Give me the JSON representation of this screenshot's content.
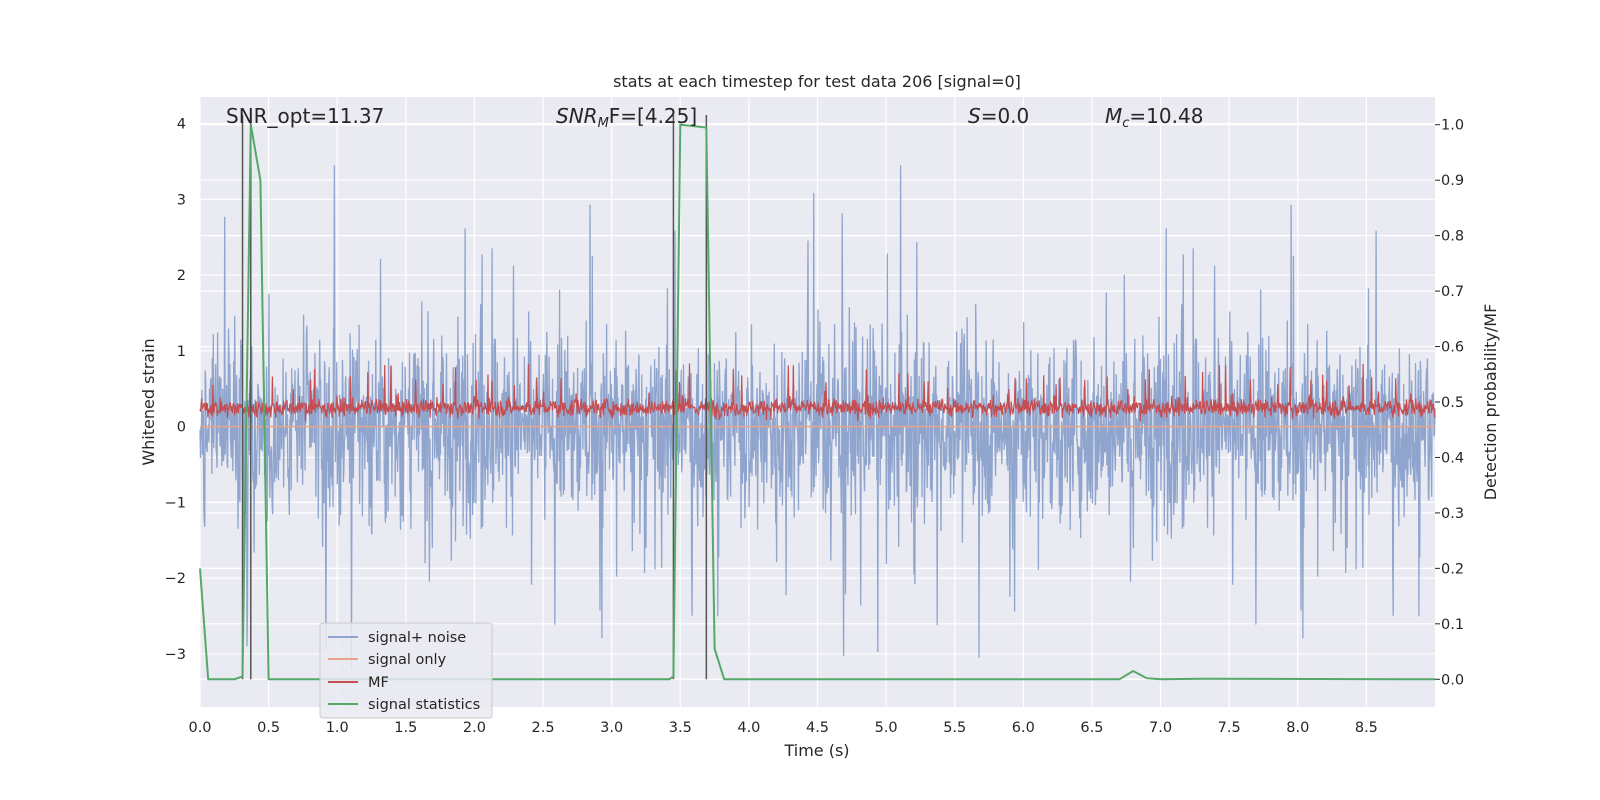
{
  "chart_data": {
    "type": "line",
    "title": "stats at each timestep for test data 206 [signal=0]",
    "xlabel": "Time (s)",
    "ylabel_left": "Whitened strain",
    "ylabel_right": "Detection probability/MF",
    "xlim": [
      0.0,
      9.0
    ],
    "ylim_left": [
      -3.7,
      4.35
    ],
    "ylim_right": [
      -0.05,
      1.05
    ],
    "x_ticks": [
      "0.0",
      "0.5",
      "1.0",
      "1.5",
      "2.0",
      "2.5",
      "3.0",
      "3.5",
      "4.0",
      "4.5",
      "5.0",
      "5.5",
      "6.0",
      "6.5",
      "7.0",
      "7.5",
      "8.0",
      "8.5"
    ],
    "y_ticks_left": [
      "−3",
      "−2",
      "−1",
      "0",
      "1",
      "2",
      "3",
      "4"
    ],
    "y_ticks_right": [
      "0.0",
      "0.1",
      "0.2",
      "0.3",
      "0.4",
      "0.5",
      "0.6",
      "0.7",
      "0.8",
      "0.9",
      "1.0"
    ],
    "grid": true,
    "legend_placement": "lower-left",
    "annotations": {
      "snr_opt": "SNR_opt=11.37",
      "snr_mf_main": "SNR",
      "snr_mf_sub": "M",
      "snr_mf_rest": "F=[4.25]",
      "s_var": "S",
      "s_rest": "=0.0",
      "mc_main": "M",
      "mc_sub": "c",
      "mc_rest": "=10.48"
    },
    "vertical_lines_x": [
      0.31,
      0.37,
      3.45,
      3.69
    ],
    "series": [
      {
        "name": "signal+ noise",
        "color": "#8fa5cd",
        "description_stats": {
          "center": 0.0,
          "amplitude": 1.2,
          "max_peak": 3.45,
          "min_peak": -3.2
        }
      },
      {
        "name": "signal only",
        "color": "#e8a58a",
        "values_constant": 0.0
      },
      {
        "name": "MF",
        "color": "#c44e52",
        "description_stats": {
          "center": 0.25,
          "low": 0.02,
          "peak": 0.97
        }
      },
      {
        "name": "signal statistics",
        "color": "#55a868",
        "x": [
          0.0,
          0.06,
          0.25,
          0.31,
          0.37,
          0.44,
          0.5,
          0.55,
          3.42,
          3.45,
          3.5,
          3.69,
          3.75,
          3.82,
          6.7,
          6.8,
          6.9,
          7.0,
          7.3,
          9.0
        ],
        "y": [
          0.2,
          0.0,
          0.0,
          0.005,
          1.0,
          0.9,
          0.0,
          0.0,
          0.0,
          0.005,
          1.0,
          0.995,
          0.055,
          0.0,
          0.0,
          0.015,
          0.002,
          0.0,
          0.001,
          0.0
        ]
      }
    ]
  }
}
